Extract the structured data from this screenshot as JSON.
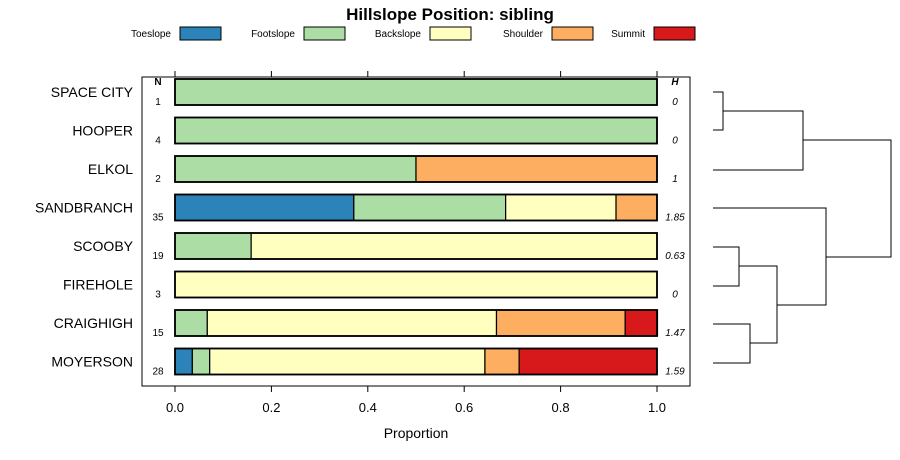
{
  "chart_data": {
    "type": "bar",
    "subtype": "stacked-horizontal-proportion",
    "title": "Hillslope Position: sibling",
    "xlabel": "Proportion",
    "ylabel": "",
    "xlim": [
      0,
      1
    ],
    "xticks": [
      "0.0",
      "0.2",
      "0.4",
      "0.6",
      "0.8",
      "1.0"
    ],
    "xtick_values": [
      0,
      0.2,
      0.4,
      0.6,
      0.8,
      1.0
    ],
    "legend_placement": "top",
    "n_header": "N",
    "h_header": "H",
    "series": [
      {
        "name": "Toeslope",
        "color": "#2b83ba"
      },
      {
        "name": "Footslope",
        "color": "#abdda4"
      },
      {
        "name": "Backslope",
        "color": "#ffffbf"
      },
      {
        "name": "Shoulder",
        "color": "#fdae61"
      },
      {
        "name": "Summit",
        "color": "#d7191c"
      }
    ],
    "categories": [
      "SPACE CITY",
      "HOOPER",
      "ELKOL",
      "SANDBRANCH",
      "SCOOBY",
      "FIREHOLE",
      "CRAIGHIGH",
      "MOYERSON"
    ],
    "rows": [
      {
        "label": "SPACE CITY",
        "n": "1",
        "h": "0",
        "values": [
          0,
          1.0,
          0,
          0,
          0
        ]
      },
      {
        "label": "HOOPER",
        "n": "4",
        "h": "0",
        "values": [
          0,
          1.0,
          0,
          0,
          0
        ]
      },
      {
        "label": "ELKOL",
        "n": "2",
        "h": "1",
        "values": [
          0,
          0.5,
          0,
          0.5,
          0
        ]
      },
      {
        "label": "SANDBRANCH",
        "n": "35",
        "h": "1.85",
        "values": [
          0.371,
          0.315,
          0.229,
          0.085,
          0
        ]
      },
      {
        "label": "SCOOBY",
        "n": "19",
        "h": "0.63",
        "values": [
          0,
          0.158,
          0.842,
          0,
          0
        ]
      },
      {
        "label": "FIREHOLE",
        "n": "3",
        "h": "0",
        "values": [
          0,
          0,
          1.0,
          0,
          0
        ]
      },
      {
        "label": "CRAIGHIGH",
        "n": "15",
        "h": "1.47",
        "values": [
          0,
          0.067,
          0.6,
          0.267,
          0.067
        ]
      },
      {
        "label": "MOYERSON",
        "n": "28",
        "h": "1.59",
        "values": [
          0.036,
          0.036,
          0.571,
          0.071,
          0.286
        ]
      }
    ]
  }
}
